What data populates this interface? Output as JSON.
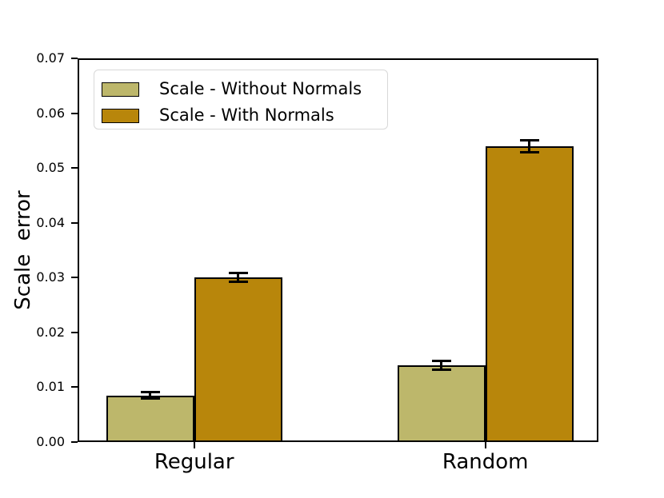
{
  "figure": {
    "background": "#ffffff"
  },
  "chart_data": {
    "type": "bar",
    "title": "",
    "xlabel": "",
    "ylabel": "Scale  error",
    "categories": [
      "Regular",
      "Random"
    ],
    "series": [
      {
        "name": "Scale - Without Normals",
        "color": "#bdb76b",
        "values": [
          0.0085,
          0.014
        ],
        "errors": [
          0.0006,
          0.0008
        ]
      },
      {
        "name": "Scale - With Normals",
        "color": "#b8860b",
        "values": [
          0.03,
          0.054
        ],
        "errors": [
          0.0008,
          0.0011
        ]
      }
    ],
    "ylim": [
      0,
      0.07
    ],
    "yticks": [
      0,
      0.01,
      0.02,
      0.03,
      0.04,
      0.05,
      0.06,
      0.07
    ],
    "ytick_labels": [
      "0.00",
      "0.01",
      "0.02",
      "0.03",
      "0.04",
      "0.05",
      "0.06",
      "0.07"
    ],
    "grid": false,
    "legend_position": "upper left",
    "bar_edge_color": "#000000",
    "error_bar_color": "#000000",
    "text_color": "#000000"
  }
}
